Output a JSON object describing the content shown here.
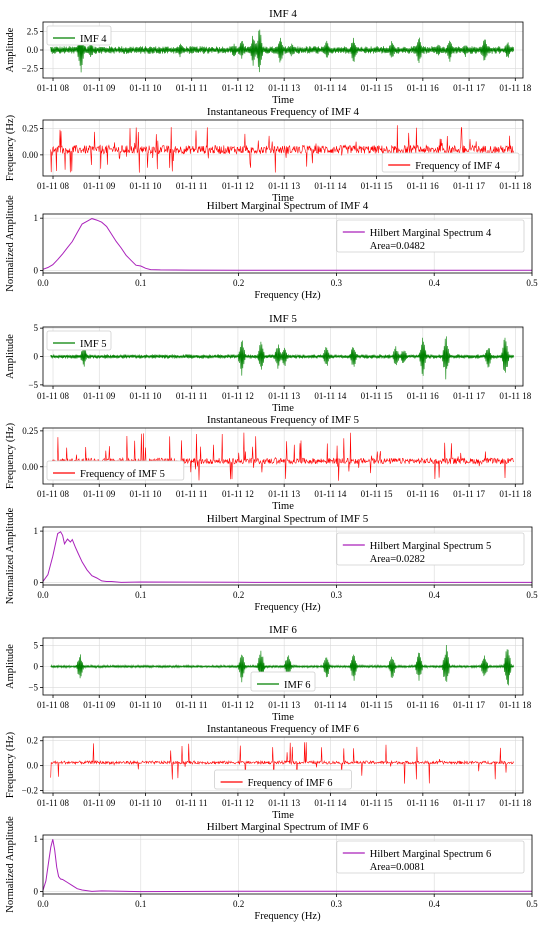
{
  "chart_data": [
    {
      "type": "line",
      "title": "IMF 4",
      "xlabel": "Time",
      "ylabel": "Amplitude",
      "x_ticks": [
        "01-11 08",
        "01-11 09",
        "01-11 10",
        "01-11 11",
        "01-11 12",
        "01-11 13",
        "01-11 14",
        "01-11 15",
        "01-11 16",
        "01-11 17",
        "01-11 18"
      ],
      "xlim": [
        "01-11 07:47",
        "01-11 18:10"
      ],
      "data_range": [
        "01-11 07:57",
        "01-11 17:58"
      ],
      "y_ticks": [
        "2.5",
        "0.0",
        "−2.5"
      ],
      "y_tick_values": [
        2.5,
        0,
        -2.5
      ],
      "ylim": [
        -3.8,
        3.8
      ],
      "color": "#008000",
      "legend": "IMF 4",
      "legend_position": "upper left",
      "grid": true,
      "series": [
        {
          "name": "IMF 4",
          "baseline_noise": 0.35,
          "bursts": [
            [
              "08:36",
              3.6
            ],
            [
              "08:49",
              1.2
            ],
            [
              "10:45",
              1.0
            ],
            [
              "11:55",
              1.1
            ],
            [
              "12:05",
              1.5
            ],
            [
              "12:20",
              2.5
            ],
            [
              "12:28",
              3.3
            ],
            [
              "12:55",
              2.2
            ],
            [
              "13:10",
              1.0
            ],
            [
              "13:55",
              1.4
            ],
            [
              "14:30",
              2.0
            ],
            [
              "15:20",
              1.4
            ],
            [
              "15:55",
              2.0
            ],
            [
              "16:20",
              1.0
            ],
            [
              "16:35",
              1.8
            ],
            [
              "16:55",
              1.0
            ],
            [
              "17:20",
              2.0
            ],
            [
              "17:50",
              1.4
            ]
          ]
        }
      ]
    },
    {
      "type": "line",
      "title": "Instantaneous Frequency of IMF 4",
      "xlabel": "Time",
      "ylabel": "Frequency (Hz)",
      "x_ticks": [
        "01-11 08",
        "01-11 09",
        "01-11 10",
        "01-11 11",
        "01-11 12",
        "01-11 13",
        "01-11 14",
        "01-11 15",
        "01-11 16",
        "01-11 17",
        "01-11 18"
      ],
      "xlim": [
        "01-11 07:47",
        "01-11 18:10"
      ],
      "data_range": [
        "01-11 07:57",
        "01-11 17:58"
      ],
      "y_ticks": [
        "0.25",
        "0.00"
      ],
      "y_tick_values": [
        0.25,
        0.0
      ],
      "ylim": [
        -0.2,
        0.33
      ],
      "color": "#ff0000",
      "legend": "Frequency of IMF 4",
      "legend_position": "lower right",
      "grid": true,
      "series": [
        {
          "name": "Frequency of IMF 4",
          "mean": 0.05,
          "jitter": 0.04,
          "spike_up": 0.29,
          "spike_down": -0.17,
          "spike_rate": 0.08
        }
      ]
    },
    {
      "type": "line",
      "title": "Hilbert Marginal Spectrum of IMF 4",
      "xlabel": "Frequency (Hz)",
      "ylabel": "Normalized Amplitude",
      "x_ticks": [
        "0.0",
        "0.1",
        "0.2",
        "0.3",
        "0.4",
        "0.5"
      ],
      "x_tick_values": [
        0,
        0.1,
        0.2,
        0.3,
        0.4,
        0.5
      ],
      "xlim": [
        0,
        0.5
      ],
      "y_ticks": [
        "0",
        "1"
      ],
      "y_tick_values": [
        0,
        1
      ],
      "ylim": [
        -0.05,
        1.08
      ],
      "color": "#aa22bb",
      "legend": "Hilbert Marginal Spectrum 4",
      "legend_extra": "Area=0.0482",
      "legend_position": "upper right",
      "grid": true,
      "series": [
        {
          "name": "Hilbert Marginal Spectrum 4",
          "x": [
            0,
            0.005,
            0.01,
            0.015,
            0.02,
            0.025,
            0.03,
            0.035,
            0.04,
            0.045,
            0.05,
            0.055,
            0.06,
            0.065,
            0.07,
            0.075,
            0.08,
            0.085,
            0.09,
            0.095,
            0.1,
            0.105,
            0.11,
            0.12,
            0.15,
            0.2,
            0.3,
            0.4,
            0.5
          ],
          "y": [
            0.02,
            0.06,
            0.12,
            0.2,
            0.32,
            0.45,
            0.55,
            0.72,
            0.88,
            0.95,
            1.0,
            0.97,
            0.92,
            0.83,
            0.7,
            0.56,
            0.42,
            0.3,
            0.19,
            0.11,
            0.07,
            0.04,
            0.02,
            0.01,
            0.005,
            0.003,
            0.002,
            0.001,
            0.001
          ]
        }
      ]
    },
    {
      "type": "line",
      "title": "IMF 5",
      "xlabel": "Time",
      "ylabel": "Amplitude",
      "x_ticks": [
        "01-11 08",
        "01-11 09",
        "01-11 10",
        "01-11 11",
        "01-11 12",
        "01-11 13",
        "01-11 14",
        "01-11 15",
        "01-11 16",
        "01-11 17",
        "01-11 18"
      ],
      "xlim": [
        "01-11 07:47",
        "01-11 18:10"
      ],
      "data_range": [
        "01-11 07:57",
        "01-11 17:58"
      ],
      "y_ticks": [
        "5",
        "0",
        "−5"
      ],
      "y_tick_values": [
        5,
        0,
        -5
      ],
      "ylim": [
        -5.2,
        5.2
      ],
      "color": "#008000",
      "legend": "IMF 5",
      "legend_position": "upper left",
      "grid": true,
      "series": [
        {
          "name": "IMF 5",
          "baseline_noise": 0.25,
          "bursts": [
            [
              "08:40",
              2.0
            ],
            [
              "12:05",
              3.5
            ],
            [
              "12:30",
              3.0
            ],
            [
              "12:52",
              2.5
            ],
            [
              "13:00",
              2.2
            ],
            [
              "13:55",
              2.2
            ],
            [
              "14:30",
              2.5
            ],
            [
              "15:25",
              2.0
            ],
            [
              "15:35",
              1.6
            ],
            [
              "16:00",
              3.8
            ],
            [
              "16:30",
              4.3
            ],
            [
              "17:25",
              2.2
            ],
            [
              "17:47",
              4.3
            ]
          ]
        }
      ]
    },
    {
      "type": "line",
      "title": "Instantaneous Frequency of IMF 5",
      "xlabel": "Time",
      "ylabel": "Frequency (Hz)",
      "x_ticks": [
        "01-11 08",
        "01-11 09",
        "01-11 10",
        "01-11 11",
        "01-11 12",
        "01-11 13",
        "01-11 14",
        "01-11 15",
        "01-11 16",
        "01-11 17",
        "01-11 18"
      ],
      "xlim": [
        "01-11 07:47",
        "01-11 18:10"
      ],
      "data_range": [
        "01-11 07:57",
        "01-11 17:58"
      ],
      "y_ticks": [
        "0.25",
        "0.00"
      ],
      "y_tick_values": [
        0.25,
        0.0
      ],
      "ylim": [
        -0.12,
        0.27
      ],
      "color": "#ff0000",
      "legend": "Frequency of IMF 5",
      "legend_position": "lower left",
      "grid": true,
      "series": [
        {
          "name": "Frequency of IMF 5",
          "mean": 0.04,
          "jitter": 0.02,
          "spike_up": 0.24,
          "spike_down": -0.1,
          "spike_rate": 0.06
        }
      ]
    },
    {
      "type": "line",
      "title": "Hilbert Marginal Spectrum of IMF 5",
      "xlabel": "Frequency (Hz)",
      "ylabel": "Normalized Amplitude",
      "x_ticks": [
        "0.0",
        "0.1",
        "0.2",
        "0.3",
        "0.4",
        "0.5"
      ],
      "x_tick_values": [
        0,
        0.1,
        0.2,
        0.3,
        0.4,
        0.5
      ],
      "xlim": [
        0,
        0.5
      ],
      "y_ticks": [
        "0",
        "1"
      ],
      "y_tick_values": [
        0,
        1
      ],
      "ylim": [
        -0.05,
        1.08
      ],
      "color": "#aa22bb",
      "legend": "Hilbert Marginal Spectrum 5",
      "legend_extra": "Area=0.0282",
      "legend_position": "upper right",
      "grid": true,
      "series": [
        {
          "name": "Hilbert Marginal Spectrum 5",
          "x": [
            0,
            0.005,
            0.01,
            0.015,
            0.018,
            0.02,
            0.022,
            0.025,
            0.028,
            0.03,
            0.033,
            0.036,
            0.04,
            0.045,
            0.05,
            0.055,
            0.06,
            0.065,
            0.07,
            0.08,
            0.1,
            0.2,
            0.3,
            0.4,
            0.5
          ],
          "y": [
            0.02,
            0.15,
            0.5,
            0.95,
            1.0,
            0.92,
            0.75,
            0.85,
            0.8,
            0.82,
            0.7,
            0.55,
            0.4,
            0.25,
            0.14,
            0.08,
            0.04,
            0.02,
            0.01,
            0.005,
            0.003,
            0.002,
            0.001,
            0.001,
            0.001
          ]
        }
      ]
    },
    {
      "type": "line",
      "title": "IMF 6",
      "xlabel": "Time",
      "ylabel": "Amplitude",
      "x_ticks": [
        "01-11 08",
        "01-11 09",
        "01-11 10",
        "01-11 11",
        "01-11 12",
        "01-11 13",
        "01-11 14",
        "01-11 15",
        "01-11 16",
        "01-11 17",
        "01-11 18"
      ],
      "xlim": [
        "01-11 07:47",
        "01-11 18:10"
      ],
      "data_range": [
        "01-11 07:57",
        "01-11 17:58"
      ],
      "y_ticks": [
        "5",
        "0",
        "−5"
      ],
      "y_tick_values": [
        5,
        0,
        -5
      ],
      "ylim": [
        -6.8,
        6.8
      ],
      "color": "#008000",
      "legend": "IMF 6",
      "legend_position": "lower center",
      "grid": true,
      "series": [
        {
          "name": "IMF 6",
          "baseline_noise": 0.2,
          "bursts": [
            [
              "08:35",
              3.5
            ],
            [
              "12:05",
              4.0
            ],
            [
              "12:30",
              4.6
            ],
            [
              "13:05",
              3.6
            ],
            [
              "13:55",
              3.2
            ],
            [
              "14:30",
              4.0
            ],
            [
              "15:20",
              3.4
            ],
            [
              "15:55",
              3.8
            ],
            [
              "16:30",
              5.6
            ],
            [
              "17:20",
              3.5
            ],
            [
              "17:50",
              6.2
            ]
          ]
        }
      ]
    },
    {
      "type": "line",
      "title": "Instantaneous Frequency of IMF 6",
      "xlabel": "Time",
      "ylabel": "Frequency (Hz)",
      "x_ticks": [
        "01-11 08",
        "01-11 09",
        "01-11 10",
        "01-11 11",
        "01-11 12",
        "01-11 13",
        "01-11 14",
        "01-11 15",
        "01-11 16",
        "01-11 17",
        "01-11 18"
      ],
      "xlim": [
        "01-11 07:47",
        "01-11 18:10"
      ],
      "data_range": [
        "01-11 07:57",
        "01-11 17:58"
      ],
      "y_ticks": [
        "0.2",
        "0.0",
        "−0.2"
      ],
      "y_tick_values": [
        0.2,
        0.0,
        -0.2
      ],
      "ylim": [
        -0.22,
        0.23
      ],
      "color": "#ff0000",
      "legend": "Frequency of IMF 6",
      "legend_position": "lower center",
      "grid": true,
      "series": [
        {
          "name": "Frequency of IMF 6",
          "mean": 0.025,
          "jitter": 0.012,
          "spike_up": 0.2,
          "spike_down": -0.15,
          "spike_rate": 0.04
        }
      ]
    },
    {
      "type": "line",
      "title": "Hilbert Marginal Spectrum of IMF 6",
      "xlabel": "Frequency (Hz)",
      "ylabel": "Normalized Amplitude",
      "x_ticks": [
        "0.0",
        "0.1",
        "0.2",
        "0.3",
        "0.4",
        "0.5"
      ],
      "x_tick_values": [
        0,
        0.1,
        0.2,
        0.3,
        0.4,
        0.5
      ],
      "xlim": [
        0,
        0.5
      ],
      "y_ticks": [
        "0",
        "1"
      ],
      "y_tick_values": [
        0,
        1
      ],
      "ylim": [
        -0.05,
        1.08
      ],
      "color": "#aa22bb",
      "legend": "Hilbert Marginal Spectrum 6",
      "legend_extra": "Area=0.0081",
      "legend_position": "upper right",
      "grid": true,
      "series": [
        {
          "name": "Hilbert Marginal Spectrum 6",
          "x": [
            0,
            0.003,
            0.006,
            0.008,
            0.01,
            0.012,
            0.014,
            0.016,
            0.018,
            0.02,
            0.025,
            0.03,
            0.035,
            0.04,
            0.05,
            0.06,
            0.1,
            0.2,
            0.3,
            0.4,
            0.5
          ],
          "y": [
            0.02,
            0.2,
            0.6,
            0.85,
            1.0,
            0.8,
            0.45,
            0.28,
            0.25,
            0.24,
            0.18,
            0.1,
            0.06,
            0.03,
            0.015,
            0.008,
            0.004,
            0.002,
            0.001,
            0.001,
            0.001
          ]
        }
      ]
    }
  ]
}
